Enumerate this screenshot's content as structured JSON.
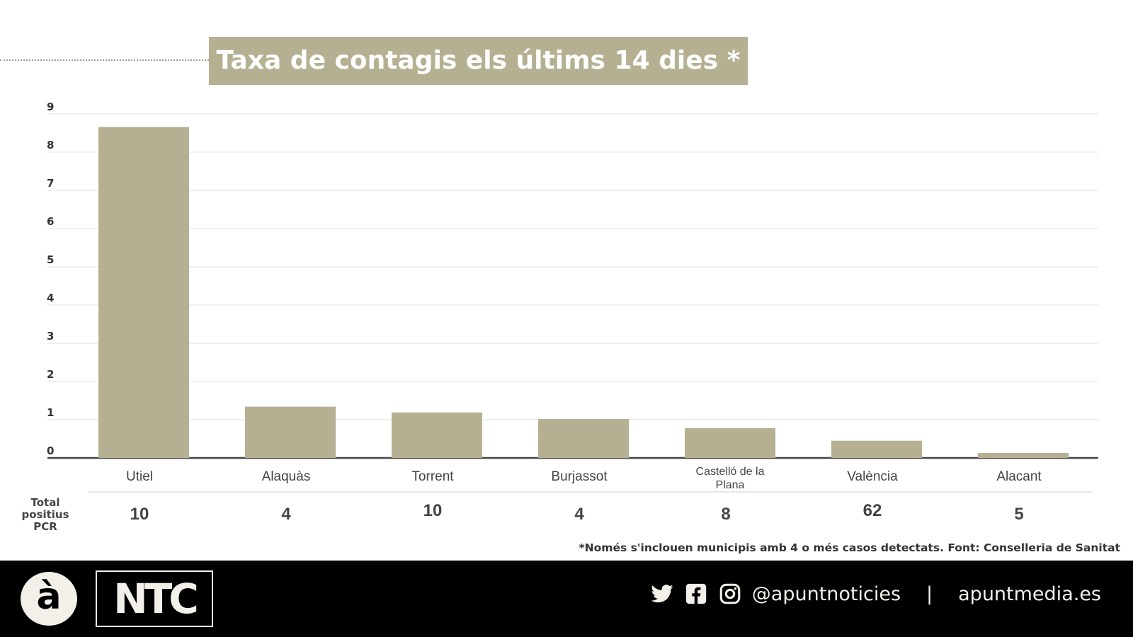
{
  "chart_data": {
    "type": "bar",
    "title": "Taxa de contagis els últims 14 dies *",
    "categories": [
      "Utiel",
      "Alaquàs",
      "Torrent",
      "Burjassot",
      "Castelló de la Plana",
      "València",
      "Alacant"
    ],
    "values": [
      8.66,
      1.34,
      1.19,
      1.02,
      0.78,
      0.45,
      0.13
    ],
    "ylim": [
      0,
      9
    ],
    "yticks": [
      "0",
      "1",
      "2",
      "3",
      "4",
      "5",
      "6",
      "7",
      "8",
      "9"
    ],
    "grid": true,
    "bar_color": "#b5b091",
    "secondary_row": {
      "label": "Total positius PCR",
      "values": [
        "10",
        "4",
        "10",
        "4",
        "8",
        "62",
        "5"
      ]
    },
    "note": "*Només s'inclouen municipis amb 4 o més casos detectats. Font: Conselleria de Sanitat"
  },
  "footer": {
    "logo_a": "à",
    "logo_ntc": "NTC",
    "icons": [
      "twitter-icon",
      "facebook-icon",
      "instagram-icon"
    ],
    "handle": "@apuntnoticies",
    "separator": "|",
    "website": "apuntmedia.es"
  }
}
